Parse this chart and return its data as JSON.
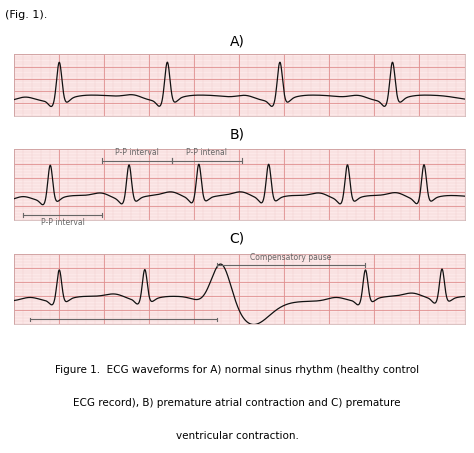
{
  "panel_bg": "#fce8e8",
  "grid_major_color": "#e09090",
  "grid_minor_color": "#f0c8c8",
  "ecg_color": "#111111",
  "ecg_linewidth": 0.9,
  "fig_bg": "#ffffff",
  "label_A": "A)",
  "label_B": "B)",
  "label_C": "C)",
  "pp_interval_label": "P-P interval",
  "pp_intvl_label2": "P-P intenal",
  "compensatory_pause_label": "Compensatory pause",
  "caption_line1": "Figure 1.  ECG waveforms for A) normal sinus rhythm (healthy control",
  "caption_line2": "ECG record), B) premature atrial contraction and C) premature",
  "caption_line3": "ventricular contraction.",
  "fig_note": "(Fig. 1).",
  "annotation_color": "#666666",
  "annotation_fontsize": 5.5
}
